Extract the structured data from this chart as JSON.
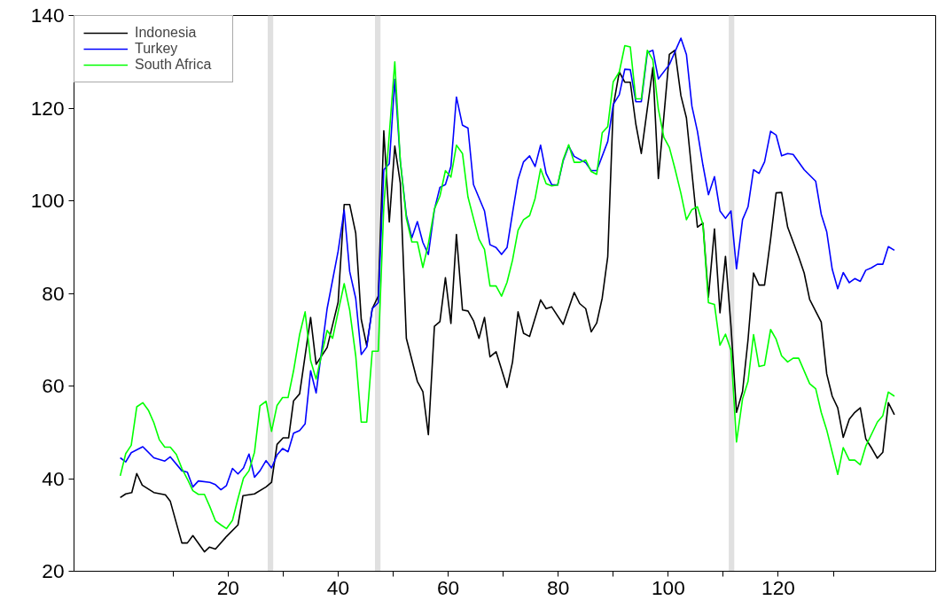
{
  "chart_data": {
    "type": "line",
    "xlim": [
      -8,
      148.6
    ],
    "ylim": [
      20,
      140
    ],
    "xticks": [
      {
        "value": 10,
        "label": null
      },
      20,
      {
        "value": 30,
        "label": null
      },
      40,
      {
        "value": 50,
        "label": null
      },
      60,
      {
        "value": 70,
        "label": null
      },
      80,
      {
        "value": 90,
        "label": null
      },
      100,
      {
        "value": 110,
        "label": null
      },
      120,
      {
        "value": 130,
        "label": null
      }
    ],
    "yticks": [
      20,
      40,
      60,
      80,
      100,
      120,
      140
    ],
    "grid": false,
    "legend": "top left",
    "line_style": "solid",
    "bands": [
      {
        "axis": "x",
        "from": 27.2,
        "to": 28.2,
        "color": "#e0e0e0"
      },
      {
        "axis": "x",
        "from": 46.7,
        "to": 47.7,
        "color": "#e0e0e0"
      },
      {
        "axis": "x",
        "from": 111,
        "to": 112,
        "color": "#e0e0e0"
      }
    ],
    "series": [
      {
        "name": "Indonesia",
        "color": "#000000",
        "x": [
          0.4,
          1.4,
          2.5,
          3.4,
          4.4,
          6.5,
          8.6,
          9.5,
          11.6,
          12.6,
          13.6,
          15.7,
          16.6,
          17.7,
          19.7,
          21.8,
          22.7,
          24.8,
          26.9,
          27.9,
          28.9,
          30,
          31,
          31.9,
          33,
          35,
          36,
          38,
          40,
          41.1,
          42.1,
          43.2,
          44.2,
          45.2,
          46.2,
          47.3,
          48.3,
          49.3,
          50.3,
          51.3,
          52.4,
          54.4,
          55.4,
          56.4,
          57.5,
          58.5,
          59.5,
          60.5,
          61.5,
          62.6,
          63.6,
          64.6,
          65.6,
          66.6,
          67.6,
          68.7,
          69.7,
          70.7,
          71.7,
          72.7,
          73.7,
          74.8,
          76.8,
          77.8,
          78.8,
          80.9,
          82.9,
          83.9,
          85,
          86,
          87,
          88,
          89,
          90,
          91.1,
          92.1,
          93.1,
          94.1,
          95.1,
          97.2,
          98.2,
          100.2,
          101.2,
          102.3,
          103.3,
          105.3,
          106.3,
          107.3,
          108.4,
          109.4,
          110.4,
          111.4,
          112.4,
          113.5,
          114.5,
          115.5,
          116.5,
          117.5,
          118.6,
          119.6,
          120.6,
          121.7,
          123.7,
          124.7,
          125.7,
          127.8,
          128.8,
          129.8,
          130.8,
          131.8,
          132.9,
          133.9,
          134.9,
          135.9,
          136.9,
          138,
          139,
          140,
          141.1
        ],
        "values": [
          35.9,
          36.7,
          37,
          41.1,
          38.6,
          37,
          36.5,
          35.1,
          26.1,
          26.1,
          27.7,
          24.2,
          25.2,
          24.8,
          27.5,
          30,
          36.3,
          36.7,
          38.2,
          39.2,
          47.4,
          48.8,
          48.8,
          56.8,
          58.3,
          74.8,
          64.7,
          68.3,
          78.1,
          99.2,
          99.2,
          93,
          74.4,
          68.7,
          76.7,
          79.4,
          115.1,
          95.4,
          111.8,
          103.8,
          70.3,
          61,
          58.8,
          49.5,
          72.9,
          73.9,
          83.4,
          73.5,
          92.7,
          76.4,
          76.2,
          74.1,
          70.3,
          74.8,
          66.3,
          67.4,
          63.6,
          59.7,
          65.2,
          76,
          71.4,
          70.7,
          78.6,
          76.7,
          77.1,
          73.3,
          80.2,
          77.8,
          76.7,
          71.7,
          73.6,
          79,
          87.9,
          120.4,
          127.8,
          125.6,
          125.6,
          116.6,
          110.2,
          128.8,
          104.8,
          131.6,
          132.5,
          122.7,
          117.9,
          94.3,
          95.2,
          79.2,
          93.9,
          75.8,
          88,
          72.9,
          54.3,
          58.8,
          70,
          84.4,
          81.8,
          81.8,
          91.7,
          101.7,
          101.8,
          94.3,
          87.9,
          84.4,
          78.7,
          73.8,
          62.6,
          57.8,
          55.3,
          48.9,
          52.8,
          54.3,
          55.3,
          48.6,
          46.7,
          44.4,
          45.7,
          56.4,
          53.8
        ]
      },
      {
        "name": "Turkey",
        "color": "#0000ff",
        "x": [
          0.4,
          1.4,
          2.4,
          4.5,
          6.5,
          8.5,
          9.5,
          11.6,
          12.6,
          13.6,
          14.6,
          16.7,
          17.7,
          18.7,
          19.7,
          20.8,
          21.8,
          22.8,
          23.8,
          24.8,
          25.8,
          26.9,
          27.9,
          28.9,
          29.9,
          30.9,
          31.9,
          33,
          34,
          35,
          36,
          38,
          40,
          41.1,
          42.1,
          43.2,
          44.2,
          45.2,
          46.2,
          47.3,
          48.3,
          49.3,
          50.3,
          51.3,
          52.4,
          53.4,
          54.4,
          55.4,
          56.4,
          57.5,
          58.5,
          59.5,
          60.5,
          61.5,
          62.6,
          63.6,
          64.6,
          66.6,
          67.6,
          68.7,
          69.7,
          70.7,
          71.7,
          72.7,
          73.7,
          74.8,
          75.8,
          76.8,
          77.8,
          78.8,
          79.9,
          80.9,
          81.9,
          82.9,
          85,
          86,
          87,
          89,
          90,
          91.1,
          92.1,
          93.1,
          94.1,
          95.1,
          96.2,
          97.2,
          98.2,
          100.2,
          102.3,
          103.3,
          104.3,
          105.3,
          106.3,
          107.3,
          108.4,
          109.4,
          110.4,
          111.4,
          112.4,
          113.5,
          114.5,
          115.5,
          116.5,
          117.5,
          118.6,
          119.6,
          120.6,
          121.7,
          122.7,
          124.7,
          126.8,
          127.8,
          128.8,
          129.8,
          130.8,
          131.8,
          132.9,
          133.9,
          134.9,
          135.9,
          136.9,
          138,
          139,
          140,
          141.1
        ],
        "values": [
          44.5,
          43.6,
          45.6,
          46.9,
          44.5,
          43.8,
          44.7,
          41.7,
          41.4,
          38.2,
          39.5,
          39.2,
          38.7,
          37.6,
          38.5,
          42.2,
          41,
          42.3,
          45.3,
          40.3,
          41.7,
          43.9,
          42.3,
          45.1,
          46.5,
          45.8,
          49.8,
          50.4,
          51.8,
          63.3,
          58.5,
          76.7,
          89.1,
          98,
          84.7,
          78.9,
          66.8,
          68.4,
          76.7,
          78,
          106.7,
          108,
          126.2,
          108.6,
          96.8,
          92,
          95.5,
          91,
          88.4,
          98.1,
          102.9,
          103.5,
          107.4,
          122.4,
          116.3,
          115.7,
          103.5,
          97.8,
          90.5,
          89.9,
          88.4,
          89.9,
          97.4,
          104.6,
          108.4,
          109.7,
          107.4,
          112,
          105.9,
          103.5,
          103.4,
          108.6,
          111.8,
          109.6,
          108.2,
          106.5,
          106.5,
          112.8,
          120.8,
          122.9,
          128.4,
          128.3,
          121.4,
          121.4,
          132,
          132.5,
          126.3,
          129.4,
          135.1,
          131.6,
          120.4,
          115,
          107.7,
          101.3,
          105.2,
          97.8,
          96.2,
          97.8,
          85.3,
          95.9,
          98.7,
          106.7,
          105.9,
          108.4,
          115,
          114.2,
          109.7,
          110.2,
          110,
          106.7,
          104.2,
          97.1,
          93.3,
          85.2,
          81,
          84.5,
          82.3,
          83.2,
          82.6,
          85,
          85.5,
          86.3,
          86.3,
          90.1,
          89.3
        ]
      },
      {
        "name": "South Africa",
        "color": "#00ff00",
        "x": [
          0.4,
          1.4,
          2.4,
          3.4,
          4.5,
          5.5,
          6.5,
          7.5,
          8.5,
          9.5,
          10.6,
          11.6,
          12.6,
          13.6,
          14.6,
          15.7,
          16.7,
          17.7,
          18.7,
          19.7,
          20.8,
          21.8,
          22.8,
          23.8,
          24.8,
          25.8,
          26.9,
          27.9,
          28.9,
          29.9,
          30.9,
          31.9,
          33,
          34,
          35,
          36,
          38,
          39,
          40,
          41.1,
          42.1,
          43.2,
          44.2,
          45.2,
          46.2,
          47.3,
          48.3,
          49.3,
          50.3,
          51.3,
          52.4,
          53.4,
          54.4,
          55.4,
          56.4,
          57.5,
          58.5,
          59.5,
          60.5,
          61.5,
          62.6,
          63.6,
          64.6,
          65.6,
          66.6,
          67.6,
          68.7,
          69.7,
          70.7,
          71.7,
          72.7,
          73.7,
          74.8,
          75.8,
          76.8,
          77.8,
          78.8,
          79.9,
          80.9,
          81.9,
          82.9,
          83.9,
          85,
          86,
          87,
          88,
          89,
          90,
          91.1,
          92.1,
          93.1,
          94.1,
          95.1,
          96.2,
          97.2,
          98.2,
          99.2,
          100.2,
          101.2,
          102.3,
          103.3,
          104.3,
          105.3,
          106.3,
          107.3,
          108.4,
          109.4,
          110.4,
          111.4,
          112.4,
          113.5,
          114.5,
          115.5,
          116.5,
          117.5,
          118.6,
          119.6,
          120.6,
          121.7,
          122.7,
          123.7,
          125.7,
          126.8,
          127.8,
          128.8,
          130.8,
          131.8,
          132.9,
          133.9,
          134.9,
          135.9,
          138,
          139,
          140,
          141.1
        ],
        "values": [
          40.6,
          45.4,
          47.2,
          55.5,
          56.4,
          54.8,
          52.1,
          48.4,
          46.8,
          46.8,
          45.2,
          42.2,
          39.9,
          37.4,
          36.6,
          36.6,
          33.9,
          30.9,
          30,
          29.2,
          31,
          35.7,
          40.1,
          41.7,
          45.7,
          55.7,
          56.7,
          50.2,
          55.8,
          57.5,
          57.5,
          63.3,
          71.1,
          76,
          65.5,
          61.5,
          72,
          70.3,
          76,
          82.1,
          76.4,
          66.5,
          52.2,
          52.2,
          67.5,
          67.5,
          98.7,
          114.4,
          130,
          108.6,
          96.2,
          91.1,
          91.1,
          85.6,
          90.7,
          98.2,
          101,
          106.5,
          105.1,
          112,
          110.2,
          100.8,
          96.2,
          91.7,
          89.5,
          81.6,
          81.6,
          79.4,
          82.4,
          87.2,
          93.6,
          95.9,
          96.8,
          100.5,
          106.9,
          103.7,
          103.2,
          103.4,
          108.9,
          112.1,
          108.3,
          108.3,
          108.8,
          106.3,
          105.7,
          114.7,
          116,
          125.7,
          127.8,
          133.5,
          133.2,
          122,
          122,
          132.5,
          130.4,
          119.8,
          113.7,
          111.5,
          107,
          101.6,
          95.9,
          98.1,
          98.7,
          94.9,
          78,
          77.6,
          68.8,
          71.2,
          67.7,
          47.9,
          57.2,
          61,
          71.1,
          64.2,
          64.5,
          72.2,
          70.1,
          66.5,
          65.2,
          66,
          66,
          60.5,
          59.4,
          54.3,
          50.5,
          40.9,
          46.7,
          44,
          44,
          43,
          47,
          52.2,
          53.6,
          58.7,
          57.8
        ]
      }
    ]
  }
}
